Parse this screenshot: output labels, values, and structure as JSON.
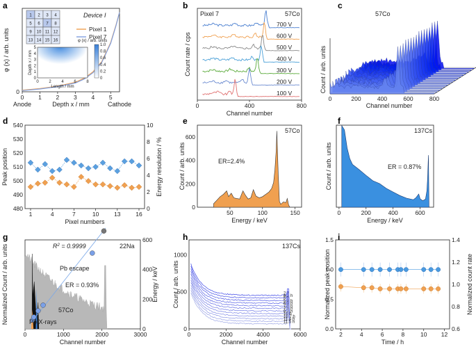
{
  "chart_data": [
    {
      "id": "a",
      "type": "line",
      "letter": "a",
      "title": "Device I",
      "xlabel": "Depth  x / mm",
      "ylabel": "φ (x) / arb. units",
      "x_ticks": [
        "0",
        "1",
        "2",
        "3",
        "4",
        "5"
      ],
      "xlim": [
        0,
        5.5
      ],
      "y_tick": "0",
      "anode_label": "Anode",
      "cathode_label": "Cathode",
      "series": [
        {
          "name": "Pixel 1",
          "color": "#f0a050",
          "x": [
            0,
            1,
            2,
            3,
            3.5,
            4,
            4.5,
            5,
            5.3,
            5.5
          ],
          "y": [
            0.02,
            0.04,
            0.07,
            0.12,
            0.17,
            0.25,
            0.38,
            0.62,
            0.84,
            1.0
          ]
        },
        {
          "name": "Pixel 7",
          "color": "#7f9fe0",
          "x": [
            0,
            1,
            2,
            3,
            3.5,
            4,
            4.5,
            5,
            5.3,
            5.5
          ],
          "y": [
            0.015,
            0.035,
            0.065,
            0.11,
            0.16,
            0.24,
            0.37,
            0.61,
            0.83,
            1.0
          ]
        }
      ],
      "pixel_grid": [
        "1",
        "2",
        "3",
        "4",
        "5",
        "6",
        "7",
        "8",
        "9",
        "10",
        "11",
        "12",
        "13",
        "14",
        "15",
        "16"
      ],
      "inset": {
        "ylabel": "Depth  x / mm",
        "xlabel": "Length / mm",
        "x_ticks": [
          "0",
          "2",
          "4",
          "6",
          "8"
        ],
        "y_ticks": [
          "0",
          "1",
          "2",
          "3",
          "4",
          "5"
        ],
        "colorbar_title": "φ (x) / arb. units",
        "colorbar_ticks": [
          "0",
          "0.2",
          "0.4",
          "0.6",
          "0.8",
          "1.0"
        ]
      }
    },
    {
      "id": "b",
      "type": "line",
      "letter": "b",
      "subtitle": "Pixel 7",
      "source": "57Co",
      "xlabel": "Channel number",
      "ylabel": "Count rate / cps",
      "x_ticks": [
        "0",
        "400",
        "800"
      ],
      "xlim": [
        0,
        800
      ],
      "series": [
        {
          "name": "700 V",
          "color": "#4a7fd0",
          "peak": 525
        },
        {
          "name": "600 V",
          "color": "#f0a050",
          "peak": 515
        },
        {
          "name": "500 V",
          "color": "#888888",
          "peak": 500
        },
        {
          "name": "400 V",
          "color": "#4aa0d8",
          "peak": 490
        },
        {
          "name": "300 V",
          "color": "#5aaa3a",
          "peak": 460
        },
        {
          "name": "200 V",
          "color": "#6a8ad0",
          "peak": 400
        },
        {
          "name": "100 V",
          "color": "#e07070",
          "peak": 290
        }
      ]
    },
    {
      "id": "c",
      "type": "area",
      "letter": "c",
      "source": "57Co",
      "xlabel": "Channel number",
      "ylabel": "Count / arb. units",
      "x_ticks": [
        "0",
        "200",
        "400",
        "600",
        "800"
      ],
      "n_spectra": 16
    },
    {
      "id": "d",
      "type": "scatter",
      "letter": "d",
      "xlabel": "Pixel numbers",
      "ylabel_left": "Peak position",
      "ylabel_right": "Energy resolution / %",
      "x_ticks": [
        "1",
        "4",
        "7",
        "10",
        "13",
        "16"
      ],
      "y_ticks_left": [
        "480",
        "490",
        "500",
        "510",
        "520",
        "530",
        "540"
      ],
      "y_ticks_right": [
        "0",
        "2",
        "4",
        "6",
        "8",
        "10"
      ],
      "ylim_left": [
        480,
        540
      ],
      "ylim_right": [
        0,
        10
      ],
      "peak_position": [
        513,
        508,
        512,
        507,
        508,
        515,
        513,
        511,
        509,
        510,
        513,
        509,
        507,
        514,
        514,
        511
      ],
      "energy_resolution": [
        2.6,
        3.0,
        3.1,
        3.7,
        3.1,
        2.9,
        2.6,
        3.8,
        3.3,
        2.9,
        2.9,
        2.7,
        2.5,
        2.8,
        2.5,
        2.6
      ],
      "left_color": "#5aa0e0",
      "right_color": "#f0a050"
    },
    {
      "id": "e",
      "type": "area",
      "letter": "e",
      "source": "57Co",
      "annotation": "ER=2.4%",
      "xlabel": "Energy / keV",
      "ylabel": "Count / arb. units",
      "x_ticks": [
        "50",
        "100",
        "150"
      ],
      "y_ticks": [
        "0",
        "200",
        "400",
        "600"
      ],
      "xlim": [
        0,
        160
      ],
      "ylim": [
        0,
        700
      ],
      "x": [
        25,
        30,
        35,
        40,
        45,
        48,
        52,
        56,
        60,
        65,
        70,
        74,
        78,
        82,
        86,
        90,
        95,
        100,
        105,
        110,
        114,
        117,
        119,
        121,
        122,
        124,
        126,
        128,
        132,
        136,
        138,
        140,
        142
      ],
      "y": [
        30,
        60,
        90,
        110,
        140,
        90,
        120,
        80,
        75,
        70,
        140,
        100,
        70,
        80,
        150,
        95,
        80,
        90,
        110,
        130,
        160,
        210,
        320,
        480,
        650,
        300,
        50,
        25,
        45,
        40,
        75,
        20,
        0
      ],
      "color": "#f0a050"
    },
    {
      "id": "f",
      "type": "area",
      "letter": "f",
      "source": "137Cs",
      "annotation": "ER = 0.87%",
      "xlabel": "Energy / keV",
      "ylabel": "Count / arb. units",
      "x_ticks": [
        "0",
        "200",
        "400",
        "600"
      ],
      "xlim": [
        -20,
        700
      ],
      "x": [
        20,
        40,
        60,
        80,
        100,
        150,
        200,
        250,
        300,
        350,
        400,
        450,
        500,
        550,
        570,
        590,
        600,
        620,
        640,
        650,
        655,
        660,
        662,
        664,
        666
      ],
      "y": [
        1.0,
        0.92,
        0.72,
        0.58,
        0.52,
        0.46,
        0.4,
        0.33,
        0.28,
        0.23,
        0.19,
        0.14,
        0.11,
        0.09,
        0.12,
        0.16,
        0.1,
        0.08,
        0.1,
        0.2,
        0.35,
        0.55,
        0.62,
        0.3,
        0.0
      ],
      "color": "#3a90e0"
    },
    {
      "id": "g",
      "type": "area",
      "letter": "g",
      "source": "22Na",
      "r2_label": "R",
      "r2_value": "= 0.9999",
      "annotation": "ER = 0.93%",
      "pb_escape": "Pb escape",
      "pb_xrays": "Pb X-rays",
      "co_label": "57Co",
      "xlabel": "Channel number",
      "ylabel": "Normalized Count / arb. units",
      "ylabel_right": "Energy / keV",
      "x_ticks": [
        "0",
        "1000",
        "2000",
        "3000"
      ],
      "y_ticks_right": [
        "0",
        "200",
        "400",
        "600"
      ],
      "xlim": [
        0,
        3000
      ],
      "ylim_right": [
        0,
        600
      ],
      "calibration_points": [
        [
          200,
          60
        ],
        [
          230,
          80
        ],
        [
          340,
          122
        ],
        [
          470,
          160
        ],
        [
          1750,
          511
        ],
        [
          2050,
          660
        ]
      ]
    },
    {
      "id": "h",
      "type": "line",
      "letter": "h",
      "source": "137Cs",
      "xlabel": "Channel number",
      "ylabel": "Count / arb. units",
      "x_ticks": [
        "0",
        "2000",
        "4000",
        "6000"
      ],
      "y_ticks": [
        "0",
        "500",
        "1000"
      ],
      "ylim": [
        0,
        1200
      ],
      "times": [
        "2 h",
        "4.2 h",
        "5 h",
        "5.8 h",
        "6.7 h",
        "7.5 h",
        "7.8 h",
        "8.3 h",
        "10 h",
        "10.7 h",
        "11.4 h",
        "11.5 h"
      ]
    },
    {
      "id": "i",
      "type": "scatter",
      "letter": "i",
      "xlabel": "Time / h",
      "ylabel_left": "Normalized peak position",
      "ylabel_right": "Normalized count rate",
      "x_ticks": [
        "2",
        "4",
        "6",
        "8",
        "10",
        "12"
      ],
      "y_ticks_left": [
        "0.0",
        "0.5",
        "1.0",
        "1.5"
      ],
      "y_ticks_right": [
        "0.6",
        "0.8",
        "1.0",
        "1.2",
        "1.4"
      ],
      "xlim": [
        1.5,
        12.5
      ],
      "time": [
        2,
        4.2,
        5,
        5.8,
        6.7,
        7.5,
        7.8,
        8.3,
        10,
        10.7,
        11.4
      ],
      "peak_position": [
        1.0,
        1.0,
        1.0,
        1.0,
        1.0,
        1.0,
        1.0,
        1.0,
        1.0,
        1.0,
        1.0
      ],
      "count_rate": [
        0.98,
        0.97,
        0.97,
        0.96,
        0.96,
        0.96,
        0.96,
        0.96,
        0.96,
        0.96,
        0.96
      ],
      "left_color": "#4a9ae0",
      "right_color": "#f0a050"
    }
  ]
}
